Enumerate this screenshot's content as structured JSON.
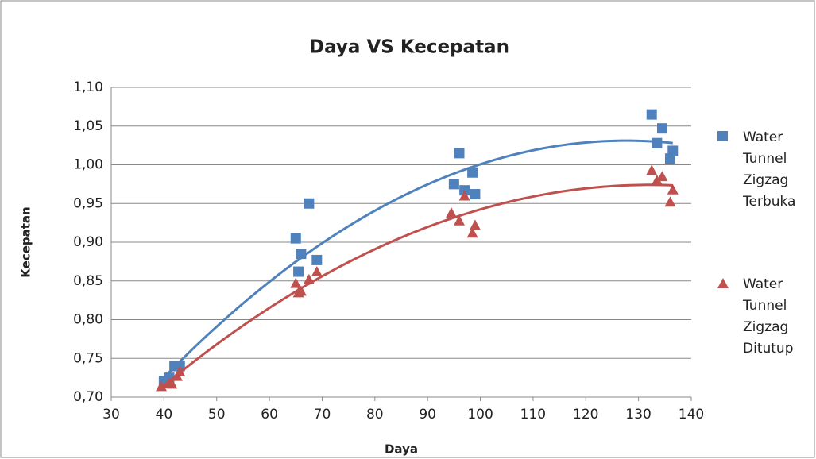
{
  "chart_data": {
    "type": "scatter",
    "title": "Daya VS Kecepatan",
    "xlabel": "Daya",
    "ylabel": "Kecepatan",
    "xlim": [
      30,
      140
    ],
    "xticks": [
      30,
      40,
      50,
      60,
      70,
      80,
      90,
      100,
      110,
      120,
      130,
      140
    ],
    "ylim": [
      0.7,
      1.1
    ],
    "yticks": [
      {
        "value": 0.7,
        "label": "0,70"
      },
      {
        "value": 0.75,
        "label": "0,75"
      },
      {
        "value": 0.8,
        "label": "0,80"
      },
      {
        "value": 0.85,
        "label": "0,85"
      },
      {
        "value": 0.9,
        "label": "0,90"
      },
      {
        "value": 0.95,
        "label": "0,95"
      },
      {
        "value": 1.0,
        "label": "1,00"
      },
      {
        "value": 1.05,
        "label": "1,05"
      },
      {
        "value": 1.1,
        "label": "1,10"
      }
    ],
    "grid": true,
    "legend": "right",
    "trendline": "polynomial",
    "series": [
      {
        "name": "Water Tunnel Zigzag Terbuka",
        "color": "#4f81bd",
        "marker": "square",
        "x": [
          40,
          40.5,
          41,
          42,
          43,
          65,
          65.5,
          66,
          67.5,
          69,
          95,
          96,
          97,
          98.5,
          99,
          132.5,
          133.5,
          134.5,
          136,
          136.5
        ],
        "values": [
          0.72,
          0.72,
          0.725,
          0.74,
          0.74,
          0.905,
          0.862,
          0.885,
          0.95,
          0.877,
          0.975,
          1.015,
          0.967,
          0.99,
          0.962,
          1.065,
          1.028,
          1.047,
          1.008,
          1.018
        ]
      },
      {
        "name": "Water Tunnel Zigzag Ditutup",
        "color": "#c0504d",
        "marker": "triangle",
        "x": [
          39.5,
          41,
          41.5,
          42.5,
          43,
          65,
          65.5,
          66,
          67.5,
          69,
          94.5,
          96,
          97,
          98.5,
          99,
          132.5,
          133.5,
          134.5,
          136,
          136.5
        ],
        "values": [
          0.714,
          0.718,
          0.717,
          0.727,
          0.733,
          0.847,
          0.835,
          0.837,
          0.852,
          0.862,
          0.938,
          0.928,
          0.96,
          0.912,
          0.922,
          0.993,
          0.98,
          0.985,
          0.952,
          0.968
        ]
      }
    ]
  }
}
